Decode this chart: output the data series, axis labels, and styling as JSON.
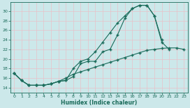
{
  "xlabel": "Humidex (Indice chaleur)",
  "bg_color": "#cce8ea",
  "grid_color": "#e8c0c8",
  "line_color": "#1a6b5a",
  "xlim": [
    -0.5,
    23.5
  ],
  "ylim": [
    13.0,
    31.8
  ],
  "xticks": [
    0,
    1,
    2,
    3,
    4,
    5,
    6,
    7,
    8,
    9,
    10,
    11,
    12,
    13,
    14,
    15,
    16,
    17,
    18,
    19,
    20,
    21,
    22,
    23
  ],
  "yticks": [
    14,
    16,
    18,
    20,
    22,
    24,
    26,
    28,
    30
  ],
  "line1_x": [
    0,
    1,
    2,
    3,
    4,
    5,
    6,
    7,
    8,
    9,
    10,
    11,
    12,
    13,
    14,
    15,
    16,
    17,
    18,
    19,
    20,
    21
  ],
  "line1_y": [
    17.0,
    15.5,
    14.5,
    14.5,
    14.5,
    14.8,
    15.3,
    15.5,
    16.3,
    19.0,
    19.5,
    19.5,
    21.5,
    22.0,
    25.0,
    28.5,
    30.5,
    31.2,
    31.2,
    29.0,
    23.5,
    22.0
  ],
  "line2_x": [
    0,
    1,
    2,
    3,
    4,
    5,
    6,
    7,
    8,
    9,
    10,
    11,
    12,
    13,
    14,
    15,
    16,
    17,
    18,
    19,
    20
  ],
  "line2_y": [
    17.0,
    15.5,
    14.5,
    14.5,
    14.5,
    14.8,
    15.3,
    15.5,
    18.0,
    19.5,
    20.0,
    21.5,
    23.5,
    25.5,
    27.5,
    29.0,
    30.5,
    31.2,
    31.2,
    29.0,
    24.0
  ],
  "line3_x": [
    0,
    1,
    2,
    3,
    4,
    5,
    6,
    7,
    8,
    9,
    10,
    11,
    12,
    13,
    14,
    15,
    16,
    17,
    18,
    19,
    20,
    21,
    22,
    23
  ],
  "line3_y": [
    17.0,
    15.5,
    14.5,
    14.5,
    14.5,
    14.8,
    15.3,
    16.0,
    16.8,
    17.3,
    17.8,
    18.3,
    18.8,
    19.3,
    19.8,
    20.3,
    20.8,
    21.3,
    21.8,
    22.0,
    22.2,
    22.3,
    22.3,
    22.0
  ]
}
